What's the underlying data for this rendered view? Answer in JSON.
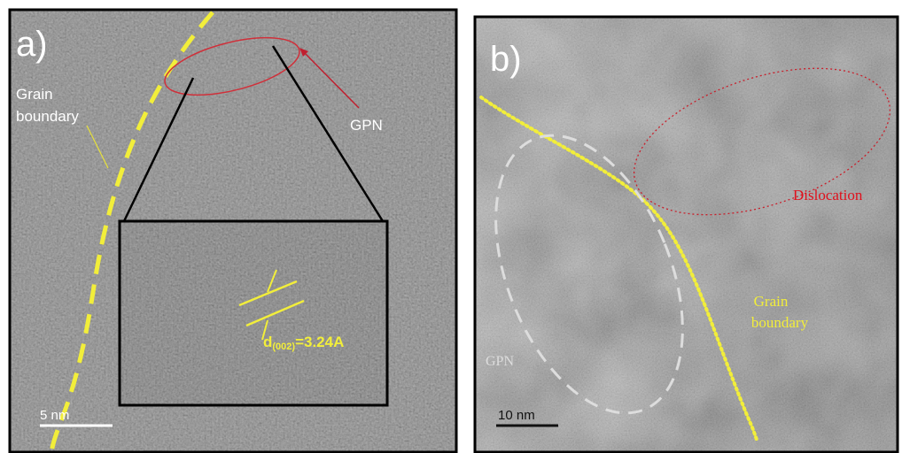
{
  "panels": [
    {
      "label": "a)",
      "grain_boundary": [
        "Grain",
        "boundary"
      ],
      "feature": "GPN",
      "spacing": {
        "main": "d",
        "subscript": "(002)",
        "rest": "=3.24A"
      },
      "scale_bar": "5 nm"
    },
    {
      "label": "b)",
      "defect": "Dislocation",
      "grain_boundary": [
        "Grain",
        "boundary"
      ],
      "feature": "GPN",
      "scale_bar": "10 nm"
    }
  ]
}
